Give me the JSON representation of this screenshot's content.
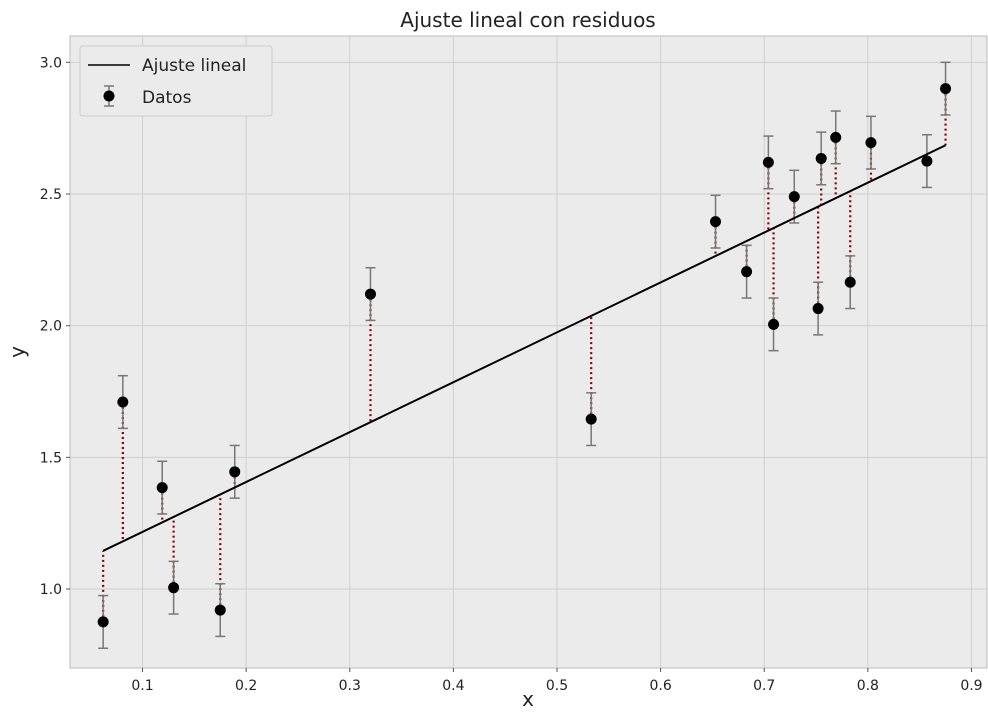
{
  "chart_data": {
    "type": "scatter",
    "title": "Ajuste lineal con residuos",
    "xlabel": "x",
    "ylabel": "y",
    "xlim": [
      0.03,
      0.915
    ],
    "ylim": [
      0.7,
      3.1
    ],
    "x_ticks": [
      0.1,
      0.2,
      0.3,
      0.4,
      0.5,
      0.6,
      0.7,
      0.8,
      0.9
    ],
    "x_tick_labels": [
      "0.1",
      "0.2",
      "0.3",
      "0.4",
      "0.5",
      "0.6",
      "0.7",
      "0.8",
      "0.9"
    ],
    "y_ticks": [
      1.0,
      1.5,
      2.0,
      2.5,
      3.0
    ],
    "y_tick_labels": [
      "1.0",
      "1.5",
      "2.0",
      "2.5",
      "3.0"
    ],
    "grid": true,
    "legend_position": "top-left",
    "colors": {
      "background": "#ebebeb",
      "grid": "#cfcfcf",
      "points": "#000000",
      "fit_line": "#000000",
      "residuals": "#8b0000",
      "errorbars": "#777777"
    },
    "series": [
      {
        "name": "Ajuste lineal",
        "kind": "line",
        "x": [
          0.062,
          0.875
        ],
        "y": [
          1.145,
          2.685
        ]
      },
      {
        "name": "Datos",
        "kind": "errorbar",
        "yerr": 0.1,
        "x": [
          0.062,
          0.081,
          0.119,
          0.13,
          0.175,
          0.189,
          0.32,
          0.533,
          0.653,
          0.683,
          0.704,
          0.709,
          0.729,
          0.752,
          0.755,
          0.769,
          0.783,
          0.803,
          0.857,
          0.875
        ],
        "y": [
          0.875,
          1.71,
          1.385,
          1.005,
          0.92,
          1.445,
          2.12,
          1.645,
          2.395,
          2.205,
          2.62,
          2.005,
          2.49,
          2.065,
          2.635,
          2.715,
          2.165,
          2.695,
          2.625,
          2.9
        ]
      }
    ]
  }
}
